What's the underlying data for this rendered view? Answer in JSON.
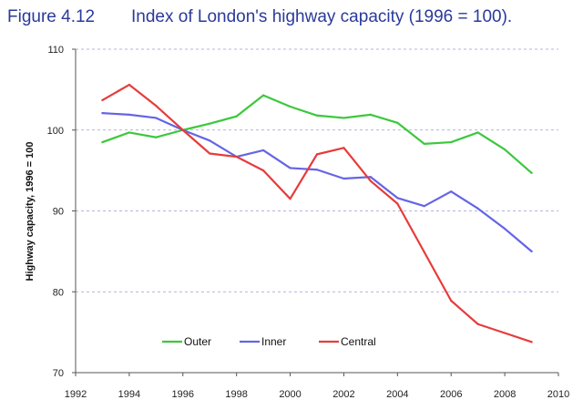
{
  "header": {
    "figure_label": "Figure 4.12",
    "title": "Index of London's highway capacity (1996 = 100)."
  },
  "chart_data": {
    "type": "line",
    "title": "Index of London's highway capacity (1996 = 100).",
    "xlabel": "",
    "ylabel": "Highway capacity, 1996 = 100",
    "xlim": [
      1992,
      2010
    ],
    "ylim": [
      70,
      110
    ],
    "xticks": [
      1992,
      1994,
      1996,
      1998,
      2000,
      2002,
      2004,
      2006,
      2008,
      2010
    ],
    "yticks": [
      70,
      80,
      90,
      100,
      110
    ],
    "grid": "horizontal dashed",
    "legend": "bottom-left, inside",
    "x": [
      1993,
      1994,
      1995,
      1996,
      1997,
      1998,
      1999,
      2000,
      2001,
      2002,
      2003,
      2004,
      2005,
      2006,
      2007,
      2008,
      2009
    ],
    "series": [
      {
        "name": "Outer",
        "color": "#3cc83c",
        "values": [
          98.5,
          99.7,
          99.1,
          100.0,
          100.8,
          101.7,
          104.3,
          102.9,
          101.8,
          101.5,
          101.9,
          100.9,
          98.3,
          98.5,
          99.7,
          97.6,
          94.7
        ]
      },
      {
        "name": "Inner",
        "color": "#6464e6",
        "values": [
          102.1,
          101.9,
          101.5,
          100.0,
          98.7,
          96.7,
          97.5,
          95.3,
          95.1,
          94.0,
          94.2,
          91.6,
          90.6,
          92.4,
          90.3,
          87.8,
          85.0
        ]
      },
      {
        "name": "Central",
        "color": "#e63c3c",
        "values": [
          103.7,
          105.6,
          103.0,
          100.0,
          97.1,
          96.7,
          95.0,
          91.5,
          97.0,
          97.8,
          93.7,
          90.9,
          84.9,
          78.9,
          76.0,
          74.9,
          73.8
        ]
      }
    ]
  }
}
